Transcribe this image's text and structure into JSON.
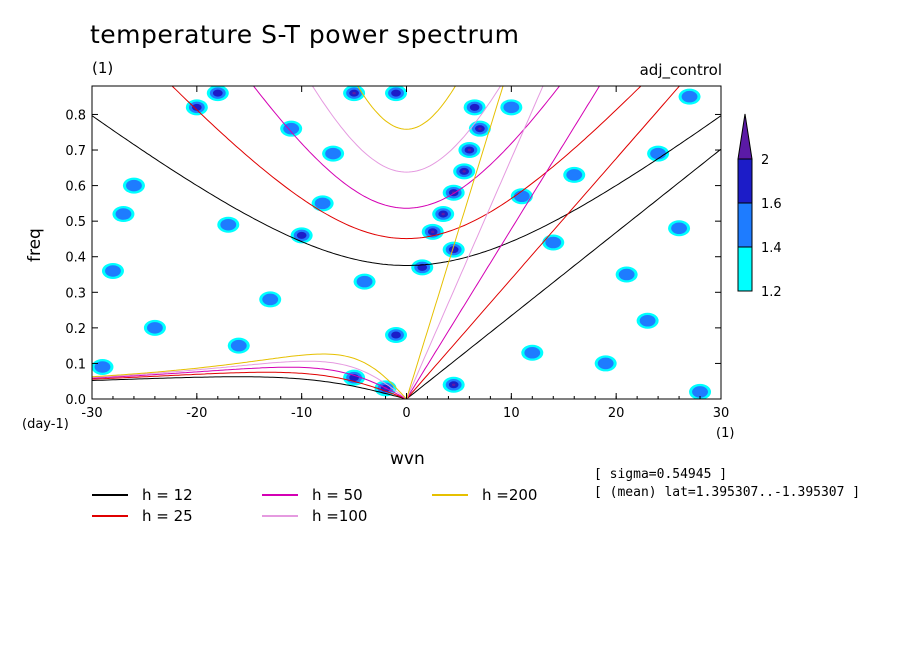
{
  "chart_data": {
    "type": "heatmap",
    "title": "temperature S-T power spectrum",
    "experiment": "adj_control",
    "xlabel": "wvn",
    "ylabel": "freq",
    "x_units": "(1)",
    "y_units_top": "(1)",
    "y_units_bottom": "(day-1)",
    "xlim": [
      -30,
      30
    ],
    "ylim": [
      0.0,
      0.88
    ],
    "xticks": [
      -30,
      -20,
      -10,
      0,
      10,
      20,
      30
    ],
    "xtick_labels": [
      "-30",
      "-20",
      "-10",
      "0",
      "10",
      "20",
      "30"
    ],
    "yticks": [
      0.0,
      0.1,
      0.2,
      0.3,
      0.4,
      0.5,
      0.6,
      0.7,
      0.8
    ],
    "ytick_labels": [
      "0.0",
      "0.1",
      "0.2",
      "0.3",
      "0.4",
      "0.5",
      "0.6",
      "0.7",
      "0.8"
    ],
    "colorbar": {
      "levels": [
        1.2,
        1.4,
        1.6,
        2
      ],
      "labels": [
        "1.2",
        "1.4",
        "1.6",
        "2"
      ],
      "colors": [
        "#00ffff",
        "#1e7cff",
        "#1c1cc8",
        "#5b1aa6"
      ]
    },
    "equivalent_depth_curves": [
      {
        "name": "h = 12",
        "h": 12,
        "color": "#000000"
      },
      {
        "name": "h = 25",
        "h": 25,
        "color": "#e00000"
      },
      {
        "name": "h = 50",
        "h": 50,
        "color": "#d400b4"
      },
      {
        "name": "h =100",
        "h": 100,
        "color": "#e59ae0"
      },
      {
        "name": "h =200",
        "h": 200,
        "color": "#e6c000"
      }
    ],
    "annotations": {
      "sigma": "[ sigma=0.54945 ]",
      "mean": "[ (mean) lat=1.395307..-1.395307 ]"
    },
    "blobs": [
      {
        "x": 7,
        "y": 0.76,
        "level": 3
      },
      {
        "x": 6,
        "y": 0.7,
        "level": 3
      },
      {
        "x": 5.5,
        "y": 0.64,
        "level": 3
      },
      {
        "x": 4.5,
        "y": 0.58,
        "level": 3
      },
      {
        "x": 3.5,
        "y": 0.52,
        "level": 3
      },
      {
        "x": 2.5,
        "y": 0.47,
        "level": 3
      },
      {
        "x": 4.5,
        "y": 0.42,
        "level": 2
      },
      {
        "x": 1.5,
        "y": 0.37,
        "level": 2
      },
      {
        "x": 6.5,
        "y": 0.82,
        "level": 2
      },
      {
        "x": 4.5,
        "y": 0.04,
        "level": 3
      },
      {
        "x": -5,
        "y": 0.06,
        "level": 2
      },
      {
        "x": -2,
        "y": 0.03,
        "level": 3
      },
      {
        "x": -1,
        "y": 0.18,
        "level": 2
      },
      {
        "x": -20,
        "y": 0.82,
        "level": 2
      },
      {
        "x": -10,
        "y": 0.46,
        "level": 2
      },
      {
        "x": -8,
        "y": 0.55,
        "level": 1
      },
      {
        "x": -11,
        "y": 0.76,
        "level": 1
      },
      {
        "x": -17,
        "y": 0.49,
        "level": 1
      },
      {
        "x": -5,
        "y": 0.86,
        "level": 3
      },
      {
        "x": -1,
        "y": 0.86,
        "level": 2
      },
      {
        "x": -18,
        "y": 0.86,
        "level": 2
      },
      {
        "x": -27,
        "y": 0.52,
        "level": 1
      },
      {
        "x": -24,
        "y": 0.2,
        "level": 1
      },
      {
        "x": -13,
        "y": 0.28,
        "level": 1
      },
      {
        "x": 14,
        "y": 0.44,
        "level": 1
      },
      {
        "x": 23,
        "y": 0.22,
        "level": 1
      },
      {
        "x": 26,
        "y": 0.48,
        "level": 1
      },
      {
        "x": 24,
        "y": 0.69,
        "level": 1
      },
      {
        "x": 12,
        "y": 0.13,
        "level": 1
      },
      {
        "x": 19,
        "y": 0.1,
        "level": 1
      },
      {
        "x": 28,
        "y": 0.02,
        "level": 1
      },
      {
        "x": -28,
        "y": 0.36,
        "level": 1
      },
      {
        "x": 10,
        "y": 0.82,
        "level": 1
      },
      {
        "x": -29,
        "y": 0.09,
        "level": 1
      },
      {
        "x": -26,
        "y": 0.6,
        "level": 1
      },
      {
        "x": -16,
        "y": 0.15,
        "level": 1
      },
      {
        "x": -4,
        "y": 0.33,
        "level": 1
      },
      {
        "x": 16,
        "y": 0.63,
        "level": 1
      },
      {
        "x": 21,
        "y": 0.35,
        "level": 1
      },
      {
        "x": -7,
        "y": 0.69,
        "level": 1
      },
      {
        "x": 11,
        "y": 0.57,
        "level": 1
      },
      {
        "x": 27,
        "y": 0.85,
        "level": 1
      }
    ]
  },
  "legend": [
    {
      "label": "h = 12",
      "color": "#000000"
    },
    {
      "label": "h = 25",
      "color": "#e00000"
    },
    {
      "label": "h = 50",
      "color": "#d400b4"
    },
    {
      "label": "h =100",
      "color": "#e59ae0"
    },
    {
      "label": "h =200",
      "color": "#e6c000"
    }
  ]
}
